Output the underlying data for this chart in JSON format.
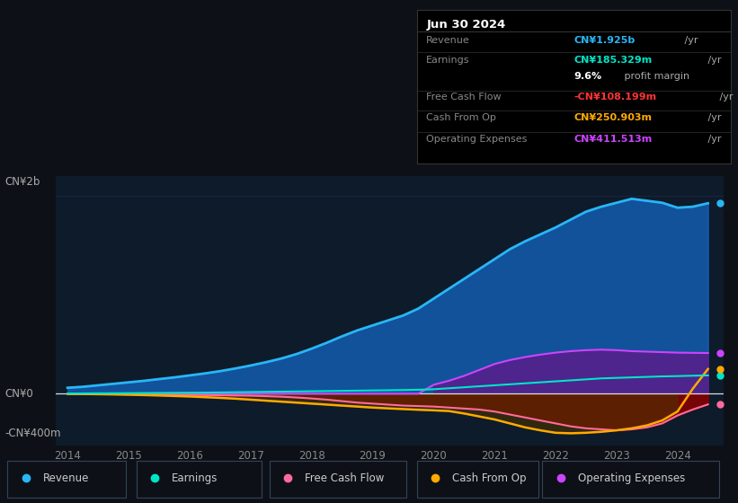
{
  "bg_color": "#0d1117",
  "plot_bg_color": "#0d1b2a",
  "grid_color": "#1a2744",
  "title_box": {
    "date": "Jun 30 2024",
    "rows": [
      {
        "label": "Revenue",
        "value": "CN¥1.925b",
        "unit": " /yr",
        "color": "#29b6f6"
      },
      {
        "label": "Earnings",
        "value": "CN¥185.329m",
        "unit": " /yr",
        "color": "#00e5c8"
      },
      {
        "label": "",
        "value": "9.6%",
        "unit": " profit margin",
        "color": "#ffffff"
      },
      {
        "label": "Free Cash Flow",
        "value": "-CN¥108.199m",
        "unit": " /yr",
        "color": "#ff3333"
      },
      {
        "label": "Cash From Op",
        "value": "CN¥250.903m",
        "unit": " /yr",
        "color": "#ffaa00"
      },
      {
        "label": "Operating Expenses",
        "value": "CN¥411.513m",
        "unit": " /yr",
        "color": "#cc44ff"
      }
    ]
  },
  "ylabel_top": "CN¥2b",
  "ylabel_zero": "CN¥0",
  "ylabel_bottom": "-CN¥400m",
  "years": [
    2014.0,
    2014.25,
    2014.5,
    2014.75,
    2015.0,
    2015.25,
    2015.5,
    2015.75,
    2016.0,
    2016.25,
    2016.5,
    2016.75,
    2017.0,
    2017.25,
    2017.5,
    2017.75,
    2018.0,
    2018.25,
    2018.5,
    2018.75,
    2019.0,
    2019.25,
    2019.5,
    2019.75,
    2020.0,
    2020.25,
    2020.5,
    2020.75,
    2021.0,
    2021.25,
    2021.5,
    2021.75,
    2022.0,
    2022.25,
    2022.5,
    2022.75,
    2023.0,
    2023.25,
    2023.5,
    2023.75,
    2024.0,
    2024.25,
    2024.5
  ],
  "revenue": [
    60,
    70,
    85,
    100,
    115,
    130,
    148,
    165,
    185,
    205,
    228,
    255,
    285,
    318,
    355,
    400,
    455,
    515,
    580,
    640,
    690,
    740,
    790,
    860,
    960,
    1060,
    1160,
    1260,
    1360,
    1460,
    1540,
    1610,
    1680,
    1760,
    1840,
    1890,
    1930,
    1970,
    1950,
    1930,
    1880,
    1890,
    1925
  ],
  "earnings": [
    2,
    3,
    4,
    5,
    6,
    7,
    8,
    9,
    10,
    11,
    13,
    15,
    17,
    19,
    21,
    23,
    25,
    27,
    29,
    31,
    33,
    35,
    37,
    40,
    45,
    55,
    65,
    75,
    85,
    95,
    105,
    115,
    125,
    135,
    145,
    155,
    160,
    165,
    170,
    175,
    178,
    182,
    185
  ],
  "free_cash_flow": [
    -3,
    -4,
    -5,
    -6,
    -7,
    -8,
    -9,
    -10,
    -12,
    -14,
    -16,
    -18,
    -20,
    -25,
    -30,
    -38,
    -48,
    -60,
    -75,
    -90,
    -100,
    -110,
    -120,
    -125,
    -130,
    -140,
    -150,
    -160,
    -180,
    -210,
    -240,
    -270,
    -300,
    -330,
    -350,
    -360,
    -370,
    -360,
    -340,
    -300,
    -220,
    -160,
    -108
  ],
  "cash_from_op": [
    -2,
    -3,
    -5,
    -7,
    -10,
    -14,
    -18,
    -23,
    -28,
    -35,
    -42,
    -50,
    -60,
    -70,
    -80,
    -90,
    -100,
    -110,
    -120,
    -130,
    -140,
    -148,
    -155,
    -162,
    -168,
    -175,
    -200,
    -230,
    -260,
    -300,
    -340,
    -370,
    -395,
    -400,
    -395,
    -385,
    -370,
    -350,
    -320,
    -270,
    -180,
    50,
    250
  ],
  "operating_expenses": [
    0,
    0,
    0,
    0,
    0,
    0,
    0,
    0,
    0,
    0,
    0,
    0,
    0,
    0,
    0,
    0,
    0,
    0,
    0,
    0,
    0,
    0,
    0,
    0,
    90,
    130,
    180,
    240,
    300,
    340,
    370,
    395,
    415,
    430,
    440,
    445,
    440,
    430,
    425,
    420,
    415,
    413,
    411
  ],
  "legend": [
    {
      "label": "Revenue",
      "color": "#29b6f6"
    },
    {
      "label": "Earnings",
      "color": "#00e5c8"
    },
    {
      "label": "Free Cash Flow",
      "color": "#ff6b9d"
    },
    {
      "label": "Cash From Op",
      "color": "#ffaa00"
    },
    {
      "label": "Operating Expenses",
      "color": "#cc44ff"
    }
  ],
  "xticks": [
    2014,
    2015,
    2016,
    2017,
    2018,
    2019,
    2020,
    2021,
    2022,
    2023,
    2024
  ],
  "ylim": [
    -520,
    2200
  ],
  "xlim": [
    2013.8,
    2024.75
  ]
}
